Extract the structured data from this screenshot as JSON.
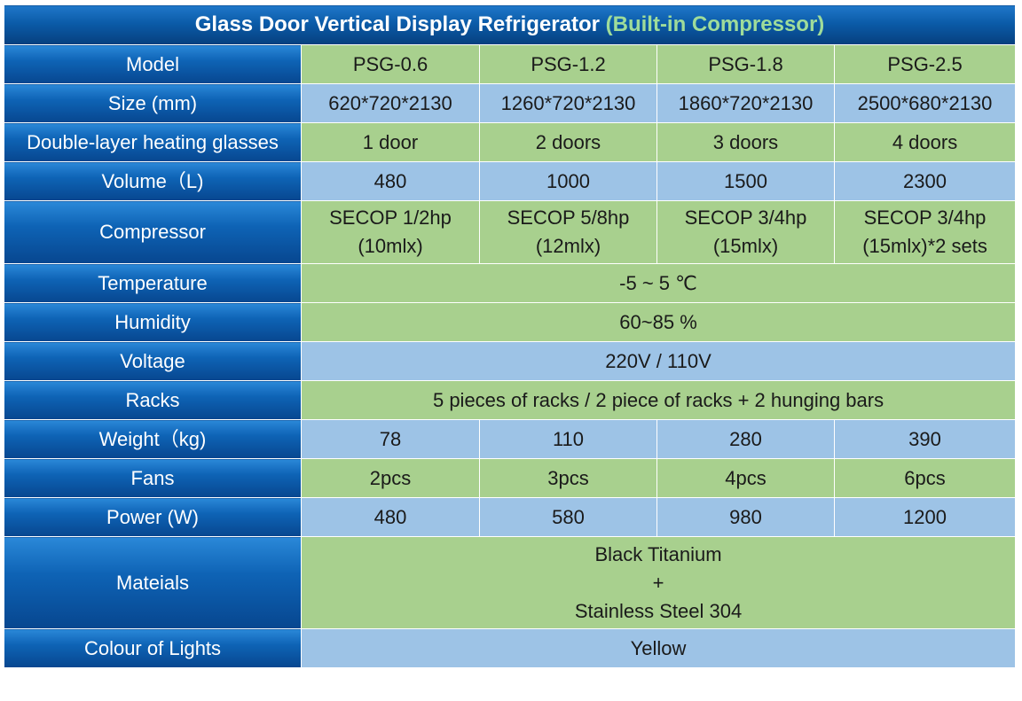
{
  "title": {
    "main": "Glass Door Vertical Display Refrigerator",
    "accent": "(Built-in Compressor)"
  },
  "colors": {
    "header_blue": "#0b5ba8",
    "label_blue": "#0e63b5",
    "cell_green": "#a8d08e",
    "cell_blue": "#9dc3e6",
    "accent_green": "#9fdc9a"
  },
  "rows": {
    "model": {
      "label": "Model",
      "values": [
        "PSG-0.6",
        "PSG-1.2",
        "PSG-1.8",
        "PSG-2.5"
      ]
    },
    "size": {
      "label": "Size (mm)",
      "values": [
        "620*720*2130",
        "1260*720*2130",
        "1860*720*2130",
        "2500*680*2130"
      ]
    },
    "glasses": {
      "label": "Double-layer heating glasses",
      "values": [
        "1 door",
        "2 doors",
        "3 doors",
        "4 doors"
      ]
    },
    "volume": {
      "label": "Volume（L)",
      "values": [
        "480",
        "1000",
        "1500",
        "2300"
      ]
    },
    "compressor": {
      "label": "Compressor",
      "values": [
        {
          "line1": "SECOP 1/2hp",
          "line2": "(10mlx)"
        },
        {
          "line1": "SECOP 5/8hp",
          "line2": "(12mlx)"
        },
        {
          "line1": "SECOP 3/4hp",
          "line2": "(15mlx)"
        },
        {
          "line1": "SECOP 3/4hp",
          "line2": "(15mlx)*2 sets"
        }
      ]
    },
    "temperature": {
      "label": "Temperature",
      "value": "-5 ~ 5 ℃"
    },
    "humidity": {
      "label": "Humidity",
      "value": "60~85 %"
    },
    "voltage": {
      "label": "Voltage",
      "value": "220V / 110V"
    },
    "racks": {
      "label": "Racks",
      "value": "5 pieces of racks / 2 piece of racks + 2 hunging bars"
    },
    "weight": {
      "label": "Weight（kg)",
      "values": [
        "78",
        "110",
        "280",
        "390"
      ]
    },
    "fans": {
      "label": "Fans",
      "values": [
        "2pcs",
        "3pcs",
        "4pcs",
        "6pcs"
      ]
    },
    "power": {
      "label": "Power (W)",
      "values": [
        "480",
        "580",
        "980",
        "1200"
      ]
    },
    "materials": {
      "label": "Mateials",
      "line1": "Black Titanium",
      "line2": "+",
      "line3": "Stainless Steel 304"
    },
    "lights": {
      "label": "Colour of Lights",
      "value": "Yellow"
    }
  }
}
